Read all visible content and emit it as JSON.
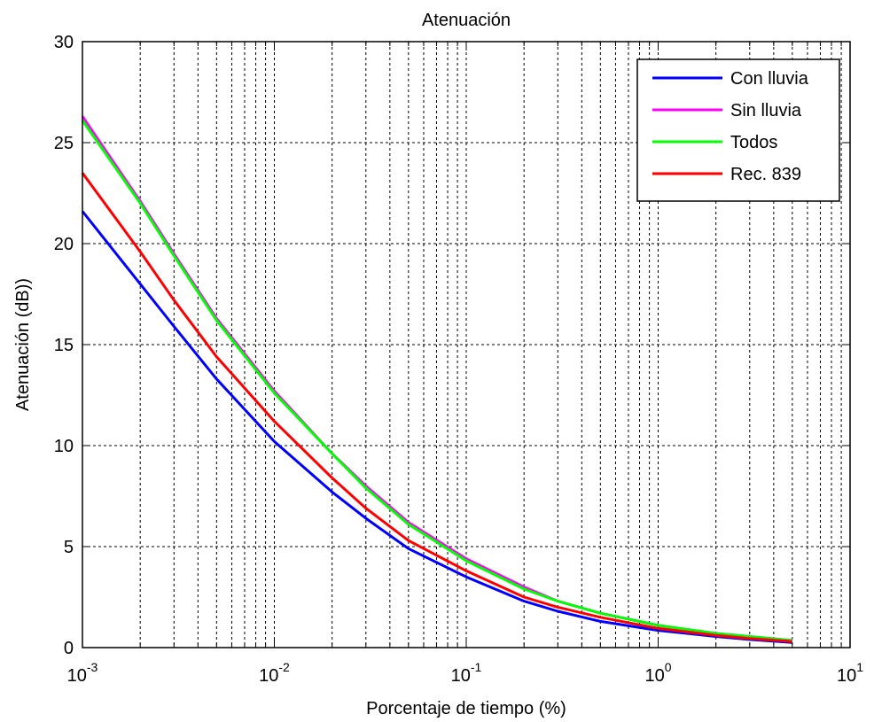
{
  "chart_data": {
    "type": "line",
    "title": "Atenuación",
    "xlabel": "Porcentaje de tiempo (%)",
    "ylabel": "Atenuación (dB))",
    "x_scale": "log",
    "xlim": [
      0.001,
      10
    ],
    "ylim": [
      0,
      30
    ],
    "x_ticks": [
      {
        "value": 0.001,
        "base": "10",
        "exp": "-3"
      },
      {
        "value": 0.01,
        "base": "10",
        "exp": "-2"
      },
      {
        "value": 0.1,
        "base": "10",
        "exp": "-1"
      },
      {
        "value": 1,
        "base": "10",
        "exp": "0"
      },
      {
        "value": 10,
        "base": "10",
        "exp": "1"
      }
    ],
    "y_ticks": [
      0,
      5,
      10,
      15,
      20,
      25,
      30
    ],
    "grid": true,
    "legend_position": "top-right",
    "series": [
      {
        "name": "Con lluvia",
        "color": "#0000ff",
        "x": [
          0.001,
          0.002,
          0.003,
          0.005,
          0.01,
          0.02,
          0.03,
          0.05,
          0.1,
          0.2,
          0.3,
          0.5,
          1,
          2,
          3,
          5
        ],
        "y": [
          21.6,
          18.0,
          15.9,
          13.3,
          10.2,
          7.7,
          6.4,
          4.9,
          3.5,
          2.3,
          1.8,
          1.3,
          0.85,
          0.55,
          0.4,
          0.25
        ]
      },
      {
        "name": "Sin lluvia",
        "color": "#ff00ff",
        "x": [
          0.001,
          0.002,
          0.003,
          0.005,
          0.01,
          0.02,
          0.03,
          0.05,
          0.1,
          0.2,
          0.3,
          0.5,
          1,
          2,
          3,
          5
        ],
        "y": [
          26.3,
          22.1,
          19.5,
          16.3,
          12.7,
          9.6,
          8.0,
          6.2,
          4.4,
          3.0,
          2.3,
          1.7,
          1.1,
          0.7,
          0.55,
          0.35
        ]
      },
      {
        "name": "Todos",
        "color": "#00ff00",
        "x": [
          0.001,
          0.002,
          0.003,
          0.005,
          0.01,
          0.02,
          0.03,
          0.05,
          0.1,
          0.2,
          0.3,
          0.5,
          1,
          2,
          3,
          5
        ],
        "y": [
          26.1,
          22.0,
          19.4,
          16.2,
          12.6,
          9.6,
          7.9,
          6.1,
          4.3,
          2.9,
          2.3,
          1.7,
          1.1,
          0.7,
          0.55,
          0.35
        ]
      },
      {
        "name": "Rec. 839",
        "color": "#ff0000",
        "x": [
          0.001,
          0.002,
          0.003,
          0.005,
          0.01,
          0.02,
          0.03,
          0.05,
          0.1,
          0.2,
          0.3,
          0.5,
          1,
          2,
          3,
          5
        ],
        "y": [
          23.5,
          19.6,
          17.2,
          14.4,
          11.2,
          8.4,
          6.9,
          5.3,
          3.8,
          2.5,
          2.0,
          1.5,
          0.95,
          0.6,
          0.45,
          0.3
        ]
      }
    ]
  }
}
